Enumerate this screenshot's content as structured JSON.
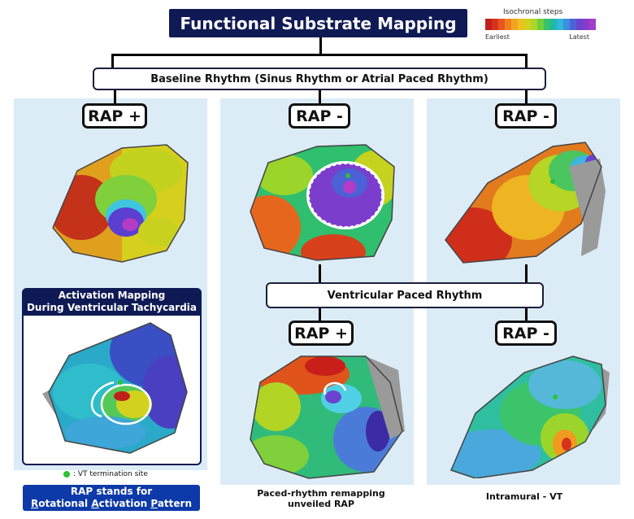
{
  "title": "Functional Substrate Mapping",
  "legend": {
    "label": "Isochronal steps",
    "earliest": "Earliest",
    "latest": "Latest",
    "colors": [
      "#c0201a",
      "#d8321d",
      "#e8561e",
      "#f0801f",
      "#f3a421",
      "#eec022",
      "#d2d21e",
      "#a9d72a",
      "#72cf3a",
      "#38c26a",
      "#22b7a6",
      "#2fb7dc",
      "#3a8fe0",
      "#4c63d8",
      "#6a44cf",
      "#8a3bcc",
      "#a33ec9"
    ]
  },
  "baseline_label": "Baseline Rhythm (Sinus Rhythm or Atrial Paced Rhythm)",
  "ventricular_label": "Ventricular Paced Rhythm",
  "rap_labels": {
    "top_left": "RAP +",
    "top_middle": "RAP -",
    "top_right": "RAP -",
    "bottom_middle": "RAP +",
    "bottom_right": "RAP -"
  },
  "vt_box": {
    "line1": "Activation Mapping",
    "line2": "During Ventricular Tachycardia"
  },
  "vt_termination_note": ": VT termination site",
  "rap_definition": {
    "line1": "RAP stands for",
    "line2_parts": [
      "R",
      "otational ",
      "A",
      "ctivation ",
      "P",
      "attern"
    ]
  },
  "captions": {
    "middle": [
      "Paced-rhythm remapping",
      "unveiled RAP"
    ],
    "right": "Intramural - VT"
  }
}
